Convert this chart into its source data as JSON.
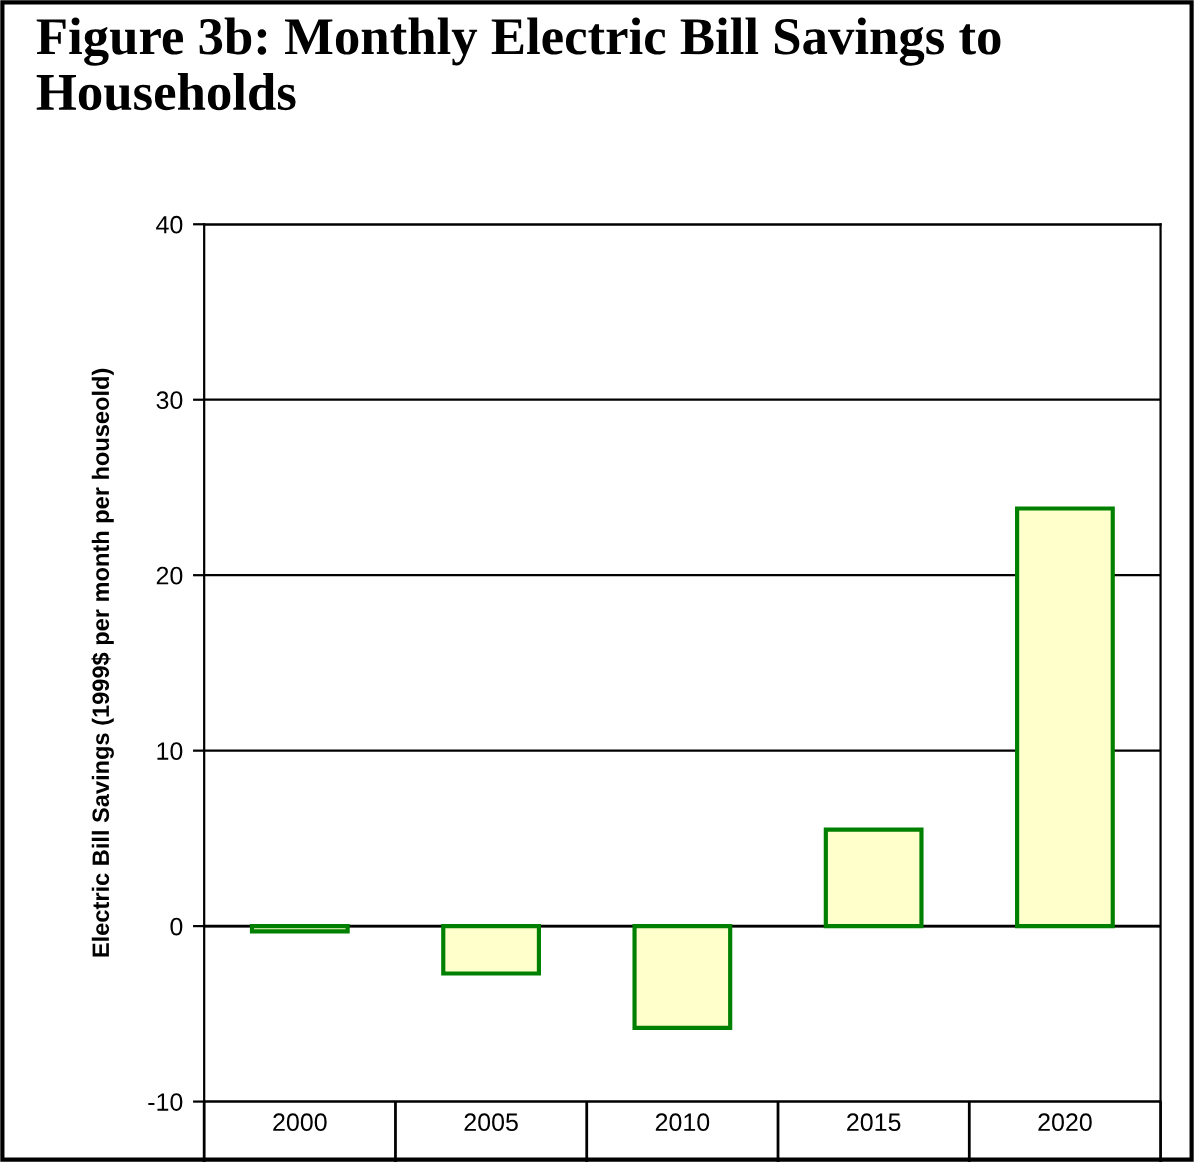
{
  "chart_data": {
    "type": "bar",
    "title": "Figure 3b: Monthly Electric Bill Savings to Households",
    "ylabel": "Electric Bill Savings (1999$ per month per houseold)",
    "categories": [
      "2000",
      "2005",
      "2010",
      "2015",
      "2020"
    ],
    "values": [
      -0.3,
      -2.7,
      -5.8,
      5.5,
      23.8
    ],
    "color": "#ffffcc",
    "ylim": [
      -10,
      40
    ],
    "yticks": [
      -10,
      0,
      10,
      20,
      30,
      40
    ],
    "grid": "y",
    "legend": false
  }
}
